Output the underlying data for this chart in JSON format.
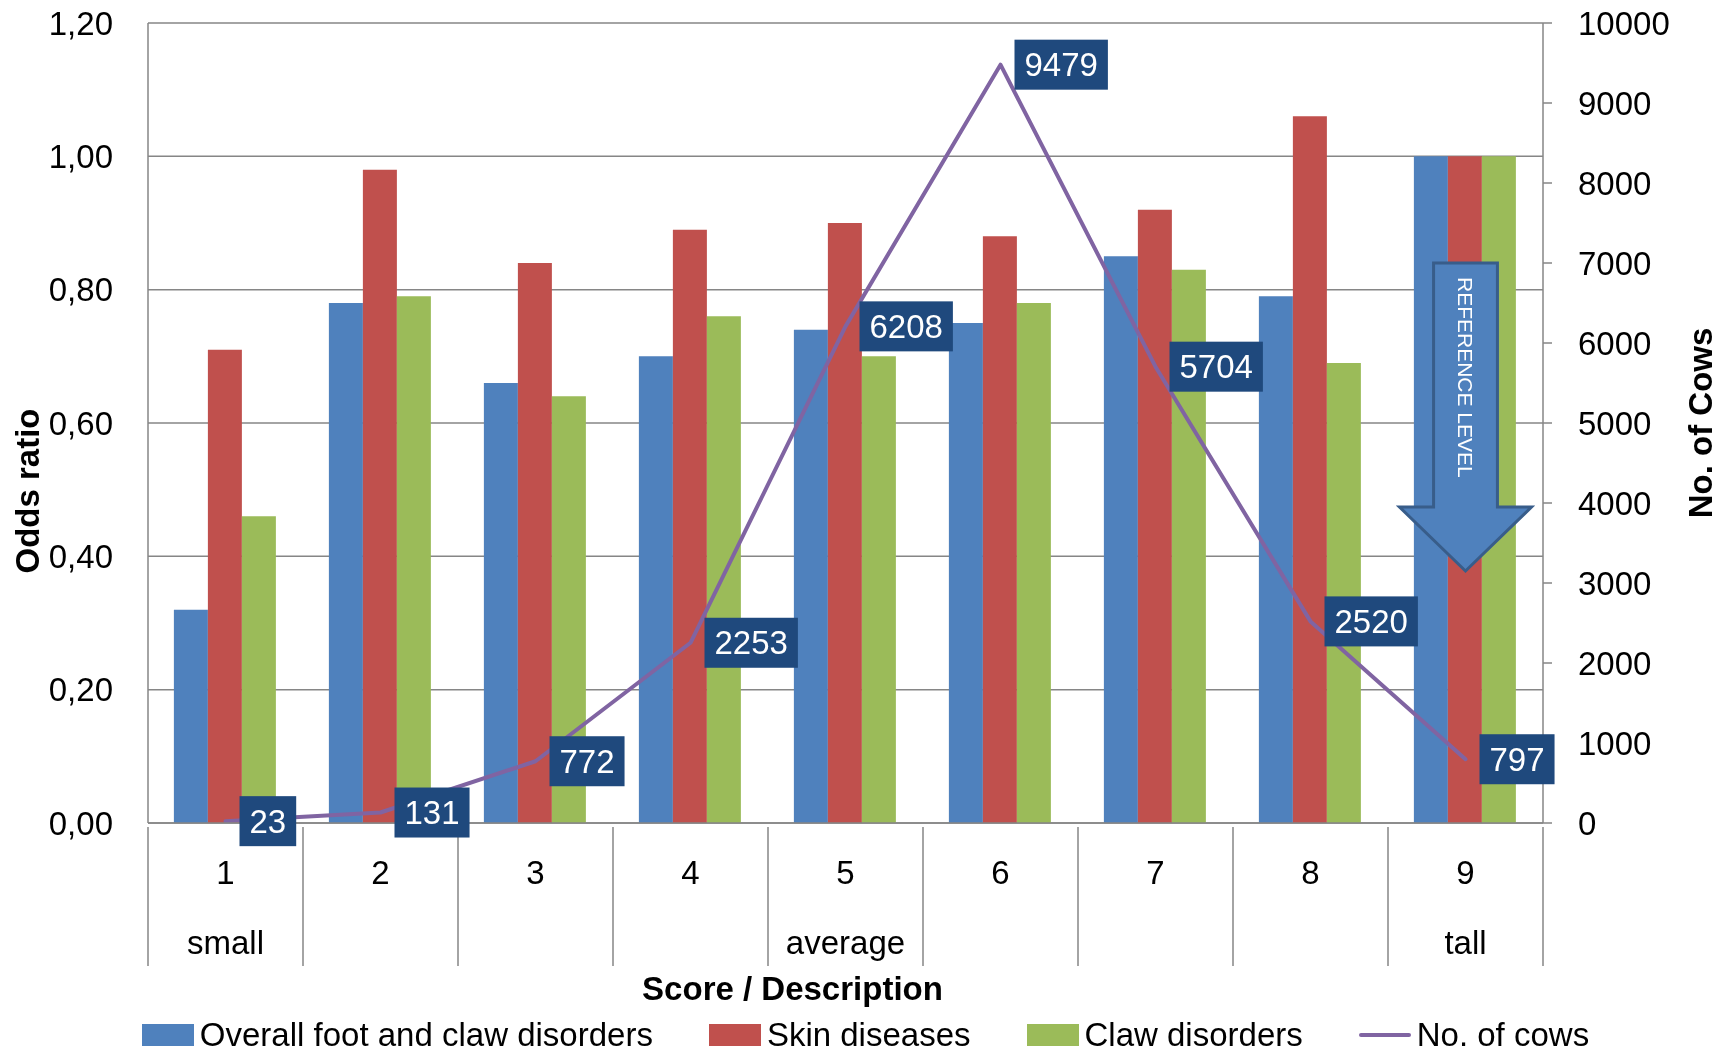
{
  "chart_data": {
    "type": "bar",
    "xlabel": "Score / Description",
    "ylabel": "Odds ratio",
    "y2label": "No. of Cows",
    "categories": [
      "1",
      "2",
      "3",
      "4",
      "5",
      "6",
      "7",
      "8",
      "9"
    ],
    "series": [
      {
        "name": "Overall foot and claw disorders",
        "color": "#4f81bd",
        "values": [
          0.32,
          0.78,
          0.66,
          0.7,
          0.74,
          0.75,
          0.85,
          0.79,
          1.0
        ]
      },
      {
        "name": "Skin diseases",
        "color": "#c0504d",
        "values": [
          0.71,
          0.98,
          0.84,
          0.89,
          0.9,
          0.88,
          0.92,
          1.06,
          1.0
        ]
      },
      {
        "name": "Claw disorders",
        "color": "#9bbb59",
        "values": [
          0.46,
          0.79,
          0.64,
          0.76,
          0.7,
          0.78,
          0.83,
          0.69,
          1.0
        ]
      },
      {
        "name": "No. of cows",
        "type": "line",
        "axis": "y2",
        "color": "#8064a2",
        "values": [
          23,
          131,
          772,
          2253,
          6208,
          9479,
          5704,
          2520,
          797
        ],
        "value_labels": [
          "23",
          "131",
          "772",
          "2253",
          "6208",
          "9479",
          "5704",
          "2520",
          "797"
        ]
      }
    ],
    "ylim": [
      0,
      1.2
    ],
    "yticks": [
      {
        "value": 0,
        "label": "0,00"
      },
      {
        "value": 0.2,
        "label": "0,20"
      },
      {
        "value": 0.4,
        "label": "0,40"
      },
      {
        "value": 0.6,
        "label": "0,60"
      },
      {
        "value": 0.8,
        "label": "0,80"
      },
      {
        "value": 1,
        "label": "1,00"
      },
      {
        "value": 1.2,
        "label": "1,20"
      }
    ],
    "y2lim": [
      0,
      10000
    ],
    "y2ticks": [
      0,
      1000,
      2000,
      3000,
      4000,
      5000,
      6000,
      7000,
      8000,
      9000,
      10000
    ],
    "grid": "y",
    "legend": "bottom",
    "annotations": [
      "REFERENCE LEVEL",
      "small",
      "average",
      "tall"
    ]
  }
}
